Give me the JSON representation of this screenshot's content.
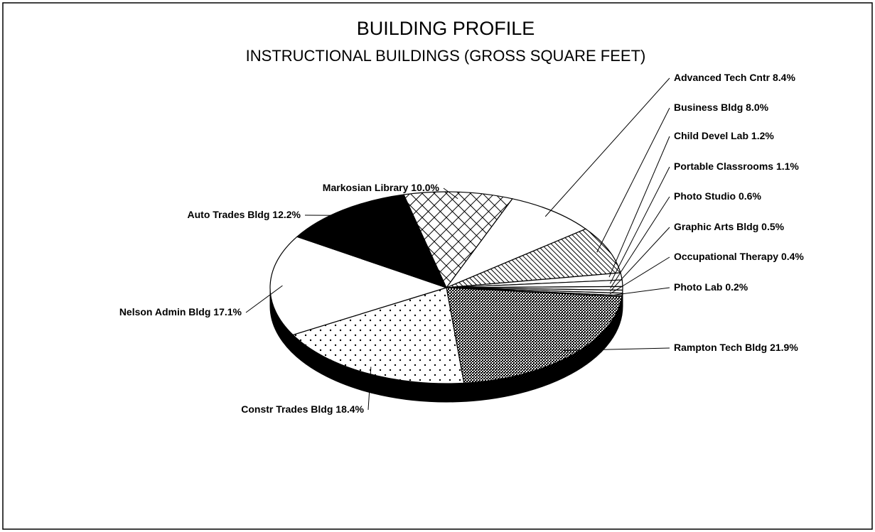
{
  "chart_data": {
    "type": "pie",
    "title": "BUILDING PROFILE",
    "subtitle": "INSTRUCTIONAL BUILDINGS (GROSS SQUARE FEET)",
    "categories": [
      "Markosian Library",
      "Advanced Tech Cntr",
      "Business Bldg",
      "Child Devel Lab",
      "Portable Classrooms",
      "Photo Studio",
      "Graphic Arts Bldg",
      "Occupational Therapy",
      "Photo Lab",
      "Rampton Tech Bldg",
      "Constr Trades Bldg",
      "Nelson Admin Bldg",
      "Auto Trades Bldg"
    ],
    "values": [
      10.0,
      8.4,
      8.0,
      1.2,
      1.1,
      0.6,
      0.5,
      0.4,
      0.2,
      21.9,
      18.4,
      17.1,
      12.2
    ],
    "value_labels": [
      "10.0%",
      "8.4%",
      "8.0%",
      "1.2%",
      "1.1%",
      "0.6%",
      "0.5%",
      "0.4%",
      "0.2%",
      "21.9%",
      "18.4%",
      "17.1%",
      "12.2%"
    ],
    "fills": [
      "crosshatch",
      "white",
      "diagonal",
      "white",
      "white",
      "white",
      "white",
      "white",
      "white",
      "dense",
      "dots",
      "white",
      "black"
    ]
  }
}
